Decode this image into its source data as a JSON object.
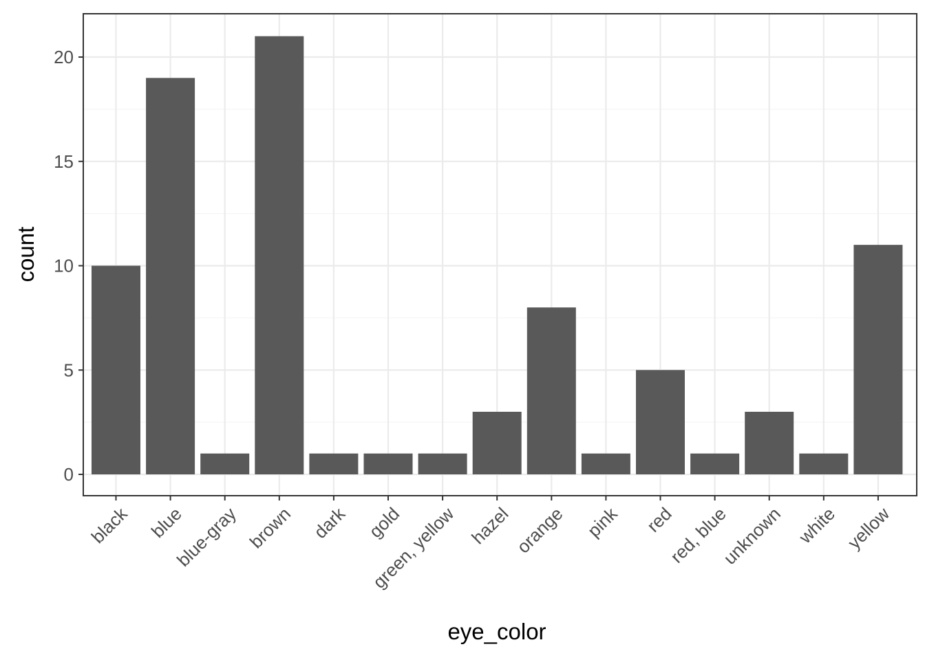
{
  "chart_data": {
    "type": "bar",
    "title": "",
    "xlabel": "eye_color",
    "ylabel": "count",
    "categories": [
      "black",
      "blue",
      "blue-gray",
      "brown",
      "dark",
      "gold",
      "green, yellow",
      "hazel",
      "orange",
      "pink",
      "red",
      "red, blue",
      "unknown",
      "white",
      "yellow"
    ],
    "values": [
      10,
      19,
      1,
      21,
      1,
      1,
      1,
      3,
      8,
      1,
      5,
      1,
      3,
      1,
      11
    ],
    "ylim": [
      0,
      21
    ],
    "yticks": [
      "0",
      "5",
      "10",
      "15",
      "20"
    ],
    "grid": true,
    "legend": "none",
    "colors": {
      "bar": "#595959",
      "grid_major": "#ebebeb",
      "grid_minor": "#f5f5f5",
      "panel_border": "#333333",
      "tick_text": "#4d4d4d",
      "title_text": "#000000"
    }
  }
}
